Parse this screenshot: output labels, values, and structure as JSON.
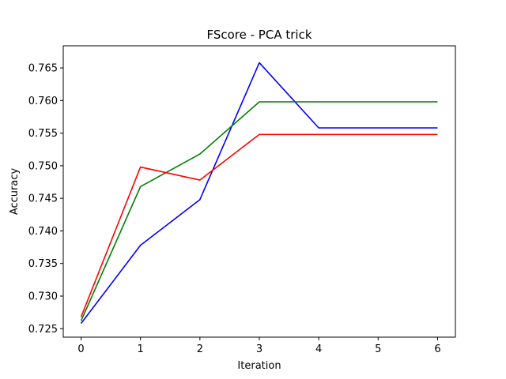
{
  "chart_data": {
    "type": "line",
    "title": "FScore - PCA trick",
    "xlabel": "Iteration",
    "ylabel": "Accuracy",
    "x": [
      0,
      1,
      2,
      3,
      4,
      5,
      6
    ],
    "xlim": [
      -0.3,
      6.3
    ],
    "ylim": [
      0.7237,
      0.7684
    ],
    "xticks": [
      "0",
      "1",
      "2",
      "3",
      "4",
      "5",
      "6"
    ],
    "yticks": [
      "0.725",
      "0.730",
      "0.735",
      "0.740",
      "0.745",
      "0.750",
      "0.755",
      "0.760",
      "0.765"
    ],
    "grid": false,
    "series": [
      {
        "color": "#0000ff",
        "values": [
          0.7258,
          0.7378,
          0.7448,
          0.7658,
          0.7558,
          0.7558,
          0.7558
        ]
      },
      {
        "color": "#008000",
        "values": [
          0.7262,
          0.7468,
          0.7518,
          0.7598,
          0.7598,
          0.7598,
          0.7598
        ]
      },
      {
        "color": "#ff0000",
        "values": [
          0.7268,
          0.7498,
          0.7478,
          0.7548,
          0.7548,
          0.7548,
          0.7548
        ]
      }
    ]
  }
}
